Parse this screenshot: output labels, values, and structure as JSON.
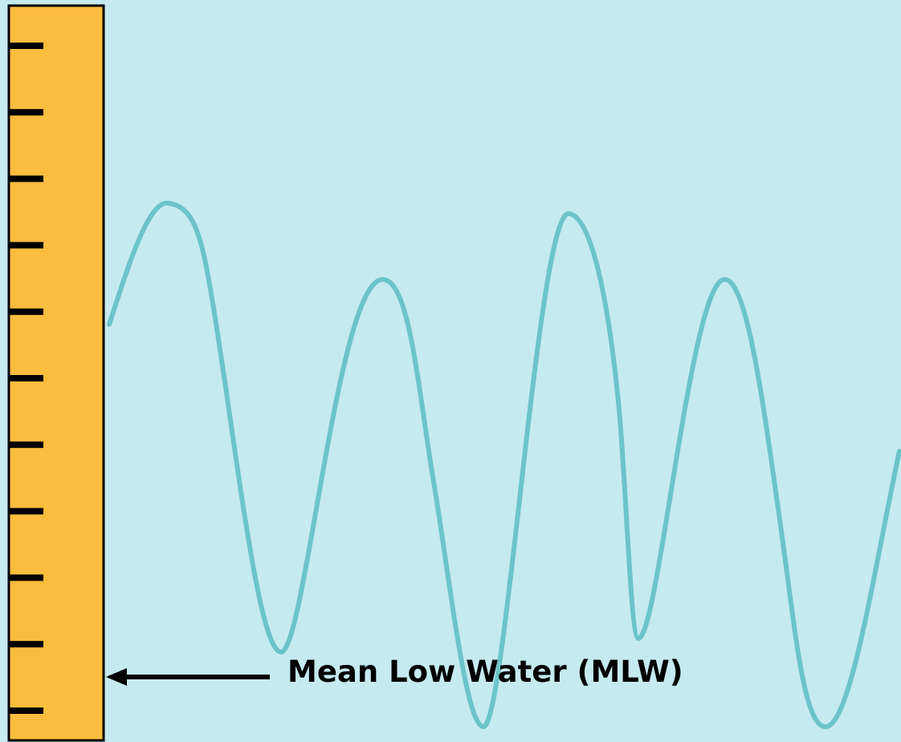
{
  "diagram": {
    "label": "Mean Low Water (MLW)",
    "tide_staff": {
      "tick_count": 11,
      "fill_color": "#fbbd3d",
      "border_color": "#000000"
    },
    "wave": {
      "color": "#6bc4c8"
    },
    "background_color": "#c5eaef",
    "arrow": {
      "direction": "left",
      "points_to": "tide-staff"
    }
  }
}
